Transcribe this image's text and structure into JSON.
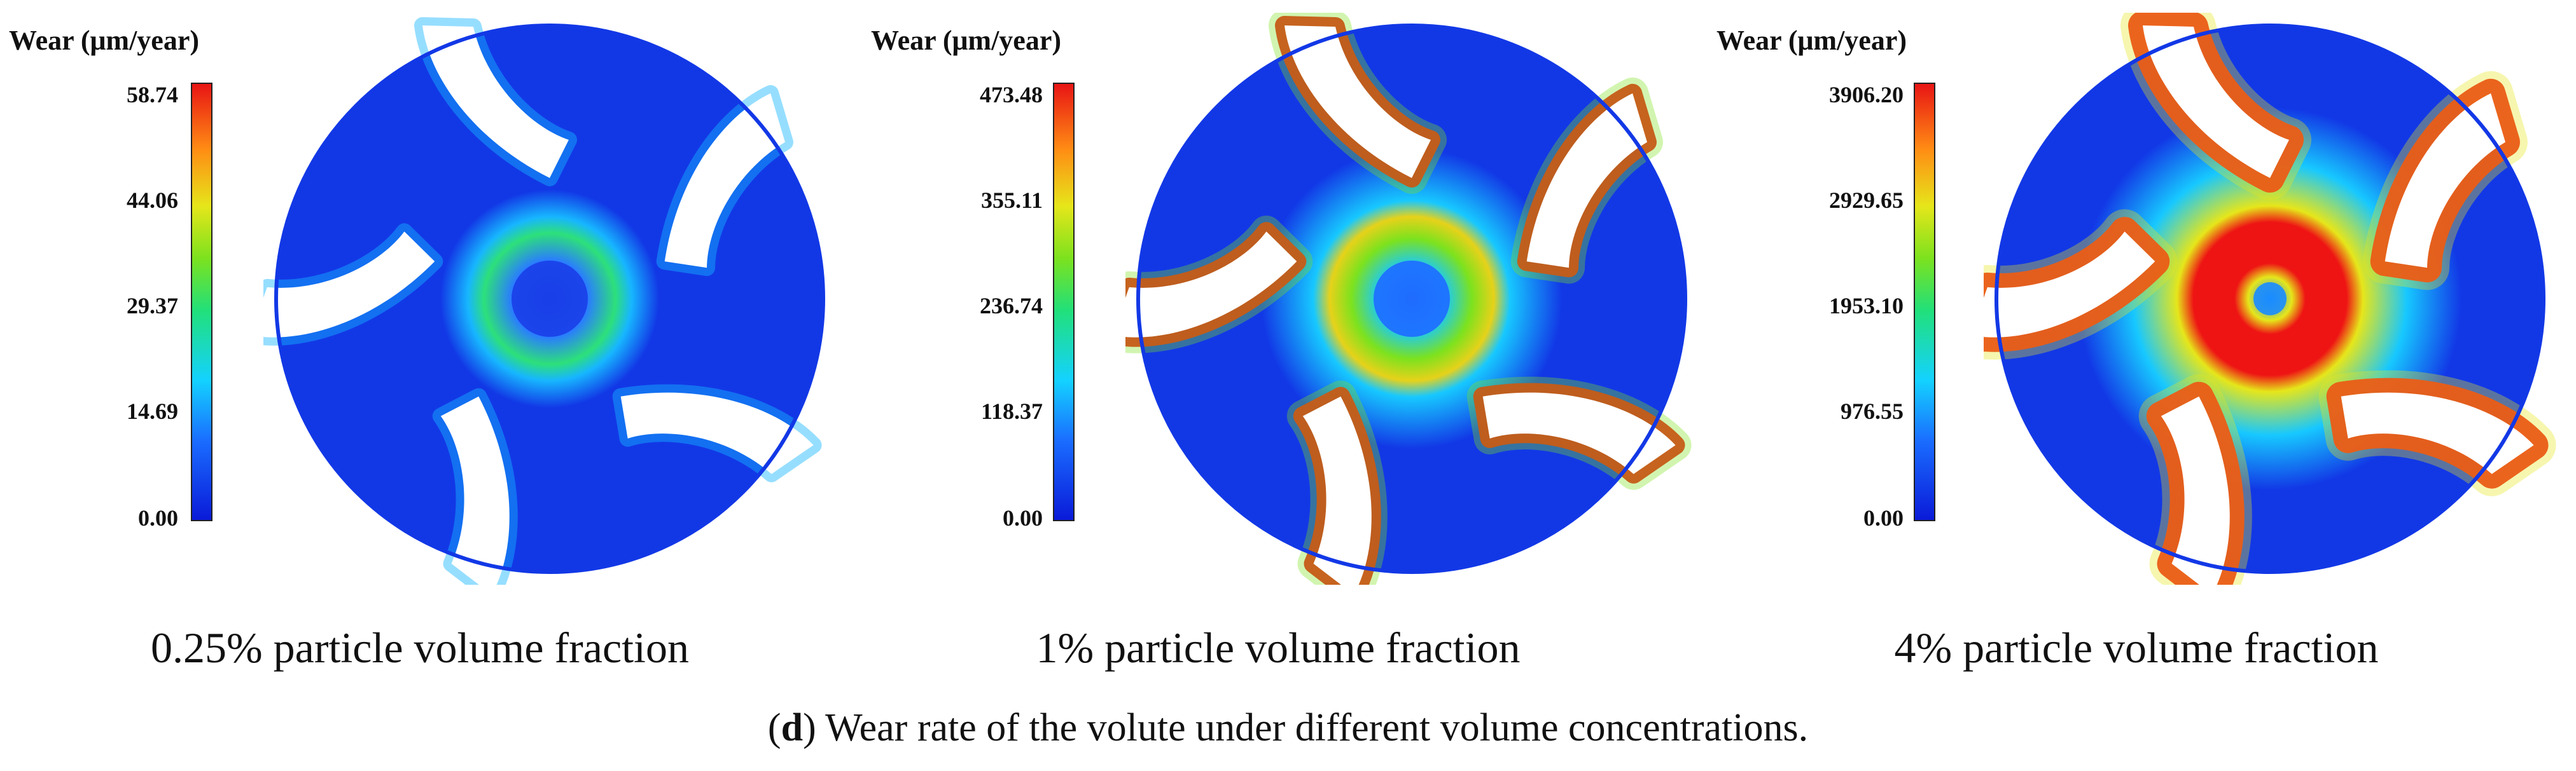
{
  "figure": {
    "legend_title": "Wear (μm/year)",
    "panels": [
      {
        "caption": "0.25% particle volume fraction",
        "ticks": [
          "58.74",
          "44.06",
          "29.37",
          "14.69",
          "0.00"
        ],
        "wear_pattern": "low",
        "colors": {
          "base": "#1238e6",
          "mid": "#17b6ff",
          "hot": "#2de07a",
          "peak": "#e61414",
          "hub": "#1a3fe8"
        }
      },
      {
        "caption": "1% particle volume fraction",
        "ticks": [
          "473.48",
          "355.11",
          "236.74",
          "118.37",
          "0.00"
        ],
        "wear_pattern": "medium",
        "colors": {
          "base": "#1238e6",
          "mid": "#17c8ff",
          "hot": "#7ce21e",
          "peak": "#ee1414",
          "hub": "#1f6cff"
        }
      },
      {
        "caption": "4% particle volume fraction",
        "ticks": [
          "3906.20",
          "2929.65",
          "1953.10",
          "976.55",
          "0.00"
        ],
        "wear_pattern": "high",
        "colors": {
          "base": "#1238e6",
          "mid": "#17c8ff",
          "hot": "#e6e61a",
          "peak": "#ee1414",
          "hub": "#ee1414"
        }
      }
    ],
    "caption_label": "d",
    "caption_text": "Wear rate of the volute under different volume concentrations."
  }
}
